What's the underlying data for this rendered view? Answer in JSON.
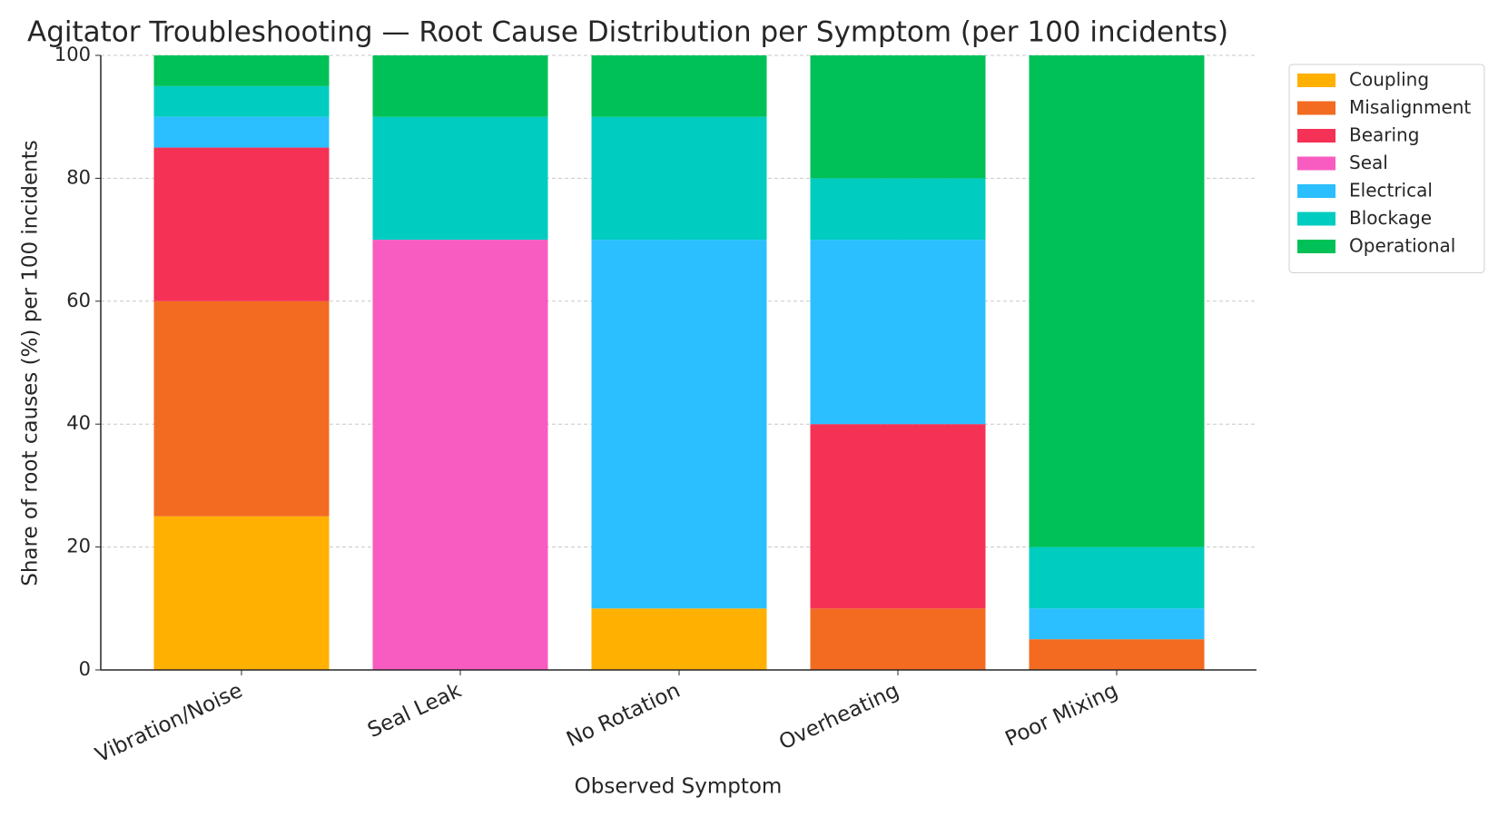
{
  "chart_data": {
    "type": "stacked_bar",
    "title": "Agitator Troubleshooting — Root Cause Distribution per Symptom (per 100 incidents)",
    "x_label": "Observed Symptom",
    "y_label": "Share of root causes (%) per 100 incidents",
    "categories": [
      "Vibration/Noise",
      "Seal Leak",
      "No Rotation",
      "Overheating",
      "Poor Mixing"
    ],
    "series": [
      {
        "name": "Coupling",
        "color": "#FFB000",
        "values": [
          25,
          0,
          10,
          0,
          0
        ]
      },
      {
        "name": "Misalignment",
        "color": "#F26B21",
        "values": [
          35,
          0,
          0,
          10,
          5
        ]
      },
      {
        "name": "Bearing",
        "color": "#F53255",
        "values": [
          25,
          0,
          0,
          30,
          0
        ]
      },
      {
        "name": "Seal",
        "color": "#F85CC0",
        "values": [
          0,
          70,
          0,
          0,
          0
        ]
      },
      {
        "name": "Electrical",
        "color": "#2BBFFF",
        "values": [
          5,
          0,
          60,
          30,
          5
        ]
      },
      {
        "name": "Blockage",
        "color": "#00CCC0",
        "values": [
          5,
          20,
          20,
          10,
          10
        ]
      },
      {
        "name": "Operational",
        "color": "#00C157",
        "values": [
          5,
          10,
          10,
          20,
          80
        ]
      }
    ],
    "ylim": [
      0,
      100
    ],
    "yticks": [
      0,
      20,
      40,
      60,
      80,
      100
    ],
    "grid": true,
    "legend": "upper right"
  }
}
